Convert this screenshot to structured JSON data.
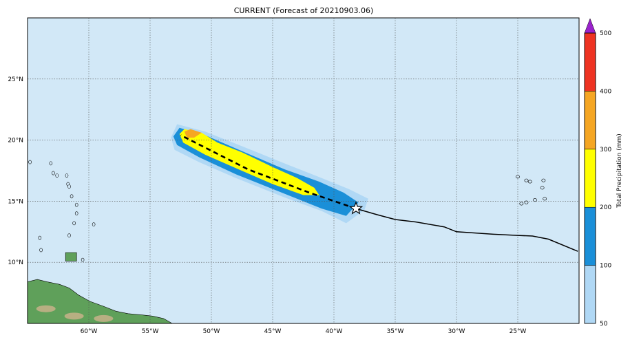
{
  "title": "CURRENT (Forecast of 20210903.06)",
  "colors": {
    "ocean": "#d2e8f7",
    "land_green": "#5fa05a",
    "land_tan": "#c7b28a",
    "grid": "#555555",
    "track": "#000000"
  },
  "map": {
    "lon_range": [
      -65,
      -20
    ],
    "lat_range": [
      5,
      30
    ],
    "lon_ticks": [
      {
        "value": -60,
        "label": "60°W"
      },
      {
        "value": -55,
        "label": "55°W"
      },
      {
        "value": -50,
        "label": "50°W"
      },
      {
        "value": -45,
        "label": "45°W"
      },
      {
        "value": -40,
        "label": "40°W"
      },
      {
        "value": -35,
        "label": "35°W"
      },
      {
        "value": -30,
        "label": "30°W"
      },
      {
        "value": -25,
        "label": "25°W"
      }
    ],
    "lat_ticks": [
      {
        "value": 10,
        "label": "10°N"
      },
      {
        "value": 15,
        "label": "15°N"
      },
      {
        "value": 20,
        "label": "20°N"
      },
      {
        "value": 25,
        "label": "25°N"
      }
    ],
    "storm_position": {
      "lon": -38.2,
      "lat": 14.4,
      "marker": "star-icon"
    },
    "past_track": [
      [
        -38.2,
        14.4
      ],
      [
        -36.5,
        13.9
      ],
      [
        -35.0,
        13.5
      ],
      [
        -33.3,
        13.3
      ],
      [
        -31.0,
        12.9
      ],
      [
        -30.0,
        12.5
      ],
      [
        -27.0,
        12.3
      ],
      [
        -25.0,
        12.2
      ],
      [
        -23.8,
        12.15
      ],
      [
        -22.5,
        11.9
      ],
      [
        -20.1,
        10.9
      ]
    ],
    "forecast_track": [
      [
        -38.2,
        14.4
      ],
      [
        -42.0,
        15.7
      ],
      [
        -47.0,
        17.6
      ],
      [
        -52.5,
        20.4
      ]
    ]
  },
  "precip_bands": [
    {
      "level": "50-100",
      "color": "#b0d8f5",
      "path": [
        [
          -53.3,
          20.2
        ],
        [
          -52.8,
          21.3
        ],
        [
          -50.5,
          20.7
        ],
        [
          -47.5,
          19.5
        ],
        [
          -43.8,
          18.0
        ],
        [
          -41.0,
          16.9
        ],
        [
          -38.8,
          16.0
        ],
        [
          -37.2,
          15.2
        ],
        [
          -37.5,
          14.3
        ],
        [
          -39.0,
          13.2
        ],
        [
          -41.0,
          14.2
        ],
        [
          -44.0,
          15.3
        ],
        [
          -48.0,
          16.9
        ],
        [
          -51.0,
          18.2
        ],
        [
          -53.0,
          19.2
        ]
      ]
    },
    {
      "level": "100-200",
      "color": "#1a8fd8",
      "path": [
        [
          -53.1,
          20.3
        ],
        [
          -52.6,
          21.0
        ],
        [
          -50.5,
          20.4
        ],
        [
          -47.5,
          19.1
        ],
        [
          -44.0,
          17.6
        ],
        [
          -41.2,
          16.6
        ],
        [
          -39.2,
          15.7
        ],
        [
          -38.0,
          14.9
        ],
        [
          -39.0,
          13.8
        ],
        [
          -41.0,
          14.4
        ],
        [
          -44.0,
          15.6
        ],
        [
          -48.0,
          17.2
        ],
        [
          -51.0,
          18.6
        ],
        [
          -52.8,
          19.6
        ]
      ]
    },
    {
      "level": "200-300",
      "color": "#ffff00",
      "path": [
        [
          -52.6,
          20.5
        ],
        [
          -52.2,
          20.9
        ],
        [
          -50.8,
          20.6
        ],
        [
          -49.5,
          19.8
        ],
        [
          -47.5,
          19.0
        ],
        [
          -45.0,
          17.8
        ],
        [
          -43.0,
          16.9
        ],
        [
          -41.6,
          16.1
        ],
        [
          -41.2,
          15.5
        ],
        [
          -42.5,
          15.5
        ],
        [
          -45.0,
          16.4
        ],
        [
          -48.0,
          17.7
        ],
        [
          -50.5,
          18.8
        ],
        [
          -52.3,
          19.8
        ]
      ]
    },
    {
      "level": "300-400",
      "color": "#f5a623",
      "path": [
        [
          -52.2,
          20.7
        ],
        [
          -51.7,
          20.9
        ],
        [
          -50.8,
          20.6
        ],
        [
          -51.4,
          20.2
        ],
        [
          -52.0,
          20.2
        ]
      ]
    }
  ],
  "land": {
    "south_america": [
      [
        -65,
        8.4
      ],
      [
        -64.2,
        8.6
      ],
      [
        -63.4,
        8.4
      ],
      [
        -62.4,
        8.2
      ],
      [
        -61.6,
        7.9
      ],
      [
        -60.8,
        7.3
      ],
      [
        -59.9,
        6.8
      ],
      [
        -58.8,
        6.4
      ],
      [
        -57.8,
        6.0
      ],
      [
        -56.8,
        5.8
      ],
      [
        -55.7,
        5.7
      ],
      [
        -54.8,
        5.6
      ],
      [
        -53.9,
        5.4
      ],
      [
        -53.2,
        5.0
      ],
      [
        -65,
        5.0
      ]
    ],
    "trinidad": [
      [
        -61.9,
        10.8
      ],
      [
        -61.0,
        10.8
      ],
      [
        -61.0,
        10.1
      ],
      [
        -61.9,
        10.1
      ]
    ],
    "islands": [
      [
        -63.1,
        18.1
      ],
      [
        -62.9,
        17.3
      ],
      [
        -62.6,
        17.1
      ],
      [
        -61.8,
        17.1
      ],
      [
        -61.7,
        16.4
      ],
      [
        -61.6,
        16.2
      ],
      [
        -61.4,
        15.4
      ],
      [
        -61.0,
        14.7
      ],
      [
        -61.0,
        14.0
      ],
      [
        -61.2,
        13.2
      ],
      [
        -59.6,
        13.1
      ],
      [
        -61.6,
        12.2
      ],
      [
        -63.9,
        11.0
      ],
      [
        -64.0,
        12.0
      ],
      [
        -60.5,
        10.2
      ],
      [
        -64.8,
        18.2
      ]
    ],
    "cape_verde": [
      [
        -25.0,
        17.0
      ],
      [
        -24.3,
        16.7
      ],
      [
        -24.0,
        16.6
      ],
      [
        -22.9,
        16.7
      ],
      [
        -23.0,
        16.1
      ],
      [
        -23.6,
        15.1
      ],
      [
        -24.3,
        14.9
      ],
      [
        -24.7,
        14.8
      ],
      [
        -22.8,
        15.2
      ]
    ]
  },
  "colorbar": {
    "label": "Total Precipitation (mm)",
    "ticks": [
      "50",
      "100",
      "200",
      "300",
      "400",
      "500"
    ],
    "levels": [
      {
        "color": "#b0d8f5"
      },
      {
        "color": "#1a8fd8"
      },
      {
        "color": "#ffff00"
      },
      {
        "color": "#f5a623"
      },
      {
        "color": "#ee3322"
      }
    ],
    "extend_color": "#9a22cc"
  }
}
